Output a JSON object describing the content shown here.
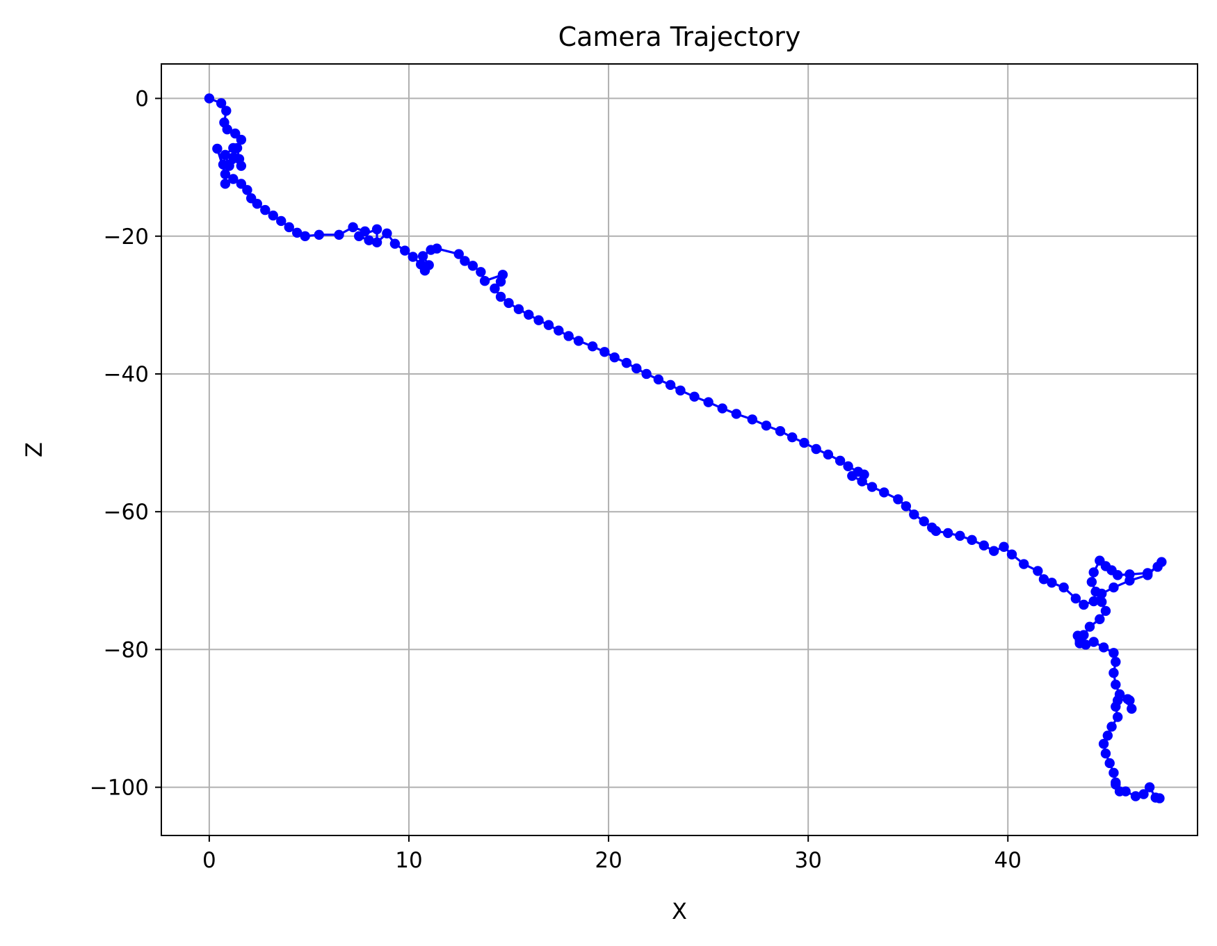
{
  "chart_data": {
    "type": "line",
    "title": "Camera Trajectory",
    "xlabel": "X",
    "ylabel": "Z",
    "xlim": [
      -2.4,
      49.5
    ],
    "ylim": [
      -107,
      5
    ],
    "xticks": [
      0,
      10,
      20,
      30,
      40
    ],
    "yticks": [
      0,
      -20,
      -40,
      -60,
      -80,
      -100
    ],
    "xtick_labels": [
      "0",
      "10",
      "20",
      "30",
      "40"
    ],
    "ytick_labels": [
      "0",
      "−20",
      "−40",
      "−60",
      "−80",
      "−100"
    ],
    "grid": true,
    "marker": "circle",
    "colors": {
      "series": "#0000ff",
      "grid": "#b0b0b0",
      "axes": "#000000"
    },
    "series": [
      {
        "x": [
          0,
          0.6,
          0.85,
          0.75,
          0.9,
          1.3,
          1.6,
          1.4,
          1.5,
          1.0,
          0.8,
          1.2,
          1.6,
          1.2,
          0.7,
          0.4,
          0.8,
          0.8,
          1.2,
          1.6,
          1.9,
          2.1,
          2.4,
          2.8,
          3.2,
          3.6,
          4.0,
          4.4,
          4.8,
          5.5,
          6.5,
          7.2,
          7.8,
          8.0,
          7.5,
          8.4,
          8.4,
          8.9,
          9.3,
          9.8,
          10.2,
          10.6,
          10.8,
          11.0,
          10.7,
          11.1,
          11.4,
          12.5,
          12.8,
          13.2,
          13.6,
          13.8,
          14.7,
          14.6,
          14.3,
          14.6,
          15.0,
          15.5,
          16.0,
          16.5,
          17.0,
          17.5,
          18.0,
          18.5,
          19.2,
          19.8,
          20.3,
          20.9,
          21.4,
          21.9,
          22.5,
          23.1,
          23.6,
          24.3,
          25.0,
          25.7,
          26.4,
          27.2,
          27.9,
          28.6,
          29.2,
          29.8,
          30.4,
          31.0,
          31.6,
          32.0,
          32.5,
          32.8,
          32.2,
          32.7,
          33.2,
          33.8,
          34.5,
          34.9,
          35.3,
          35.8,
          36.2,
          36.4,
          37.0,
          37.6,
          38.2,
          38.8,
          39.3,
          39.8,
          40.2,
          40.8,
          41.5,
          41.8,
          42.2,
          42.8,
          43.4,
          43.8,
          44.3,
          44.7,
          45.3,
          46.1,
          47.0,
          47.7,
          47.5,
          47.0,
          46.1,
          45.5,
          45.2,
          44.9,
          44.6,
          44.3,
          44.2,
          44.4,
          44.7,
          44.9,
          44.6,
          44.1,
          43.8,
          43.6,
          43.6,
          43.5,
          43.6,
          43.9,
          44.3,
          44.8,
          45.3,
          45.4,
          45.3,
          45.4,
          45.6,
          46.1,
          46.2,
          46.0,
          45.5,
          45.4,
          45.5,
          45.2,
          45.0,
          44.8,
          44.9,
          45.1,
          45.3,
          45.4,
          45.6,
          45.4,
          45.9,
          46.4,
          46.8,
          47.1,
          47.4,
          47.6
        ],
        "y": [
          0,
          -0.7,
          -1.8,
          -3.5,
          -4.5,
          -5.1,
          -6.0,
          -7.2,
          -8.8,
          -9.8,
          -8.2,
          -7.2,
          -9.8,
          -8.6,
          -9.6,
          -7.3,
          -11.0,
          -12.4,
          -11.7,
          -12.4,
          -13.3,
          -14.5,
          -15.3,
          -16.2,
          -17.0,
          -17.8,
          -18.7,
          -19.5,
          -20.0,
          -19.8,
          -19.8,
          -18.7,
          -19.3,
          -20.6,
          -20.0,
          -19.0,
          -20.9,
          -19.6,
          -21.1,
          -22.1,
          -23.0,
          -24.1,
          -25.0,
          -24.2,
          -22.9,
          -22.0,
          -21.8,
          -22.6,
          -23.6,
          -24.3,
          -25.2,
          -26.5,
          -25.6,
          -26.6,
          -27.6,
          -28.8,
          -29.7,
          -30.6,
          -31.4,
          -32.2,
          -32.9,
          -33.7,
          -34.5,
          -35.2,
          -36.0,
          -36.8,
          -37.6,
          -38.4,
          -39.2,
          -40.0,
          -40.8,
          -41.6,
          -42.4,
          -43.3,
          -44.1,
          -45.0,
          -45.8,
          -46.6,
          -47.5,
          -48.3,
          -49.2,
          -50.0,
          -50.9,
          -51.7,
          -52.6,
          -53.4,
          -54.2,
          -54.6,
          -54.8,
          -55.6,
          -56.4,
          -57.2,
          -58.2,
          -59.2,
          -60.4,
          -61.4,
          -62.3,
          -62.8,
          -63.1,
          -63.5,
          -64.1,
          -64.9,
          -65.7,
          -65.1,
          -66.2,
          -67.6,
          -68.6,
          -69.8,
          -70.3,
          -71.0,
          -72.6,
          -73.5,
          -73.0,
          -71.9,
          -71.0,
          -70.0,
          -69.2,
          -67.3,
          -68.0,
          -68.9,
          -69.1,
          -69.2,
          -68.5,
          -67.9,
          -67.1,
          -68.8,
          -70.2,
          -71.6,
          -73.1,
          -74.4,
          -75.6,
          -76.7,
          -77.9,
          -79.1,
          -78.5,
          -78.0,
          -78.7,
          -79.3,
          -78.9,
          -79.7,
          -80.5,
          -81.8,
          -83.4,
          -85.1,
          -86.5,
          -87.4,
          -88.6,
          -87.2,
          -87.4,
          -88.3,
          -89.8,
          -91.2,
          -92.5,
          -93.7,
          -95.1,
          -96.5,
          -97.9,
          -99.3,
          -100.6,
          -99.6,
          -100.6,
          -101.3,
          -101.0,
          -100.0,
          -101.5,
          -101.6
        ]
      }
    ]
  }
}
